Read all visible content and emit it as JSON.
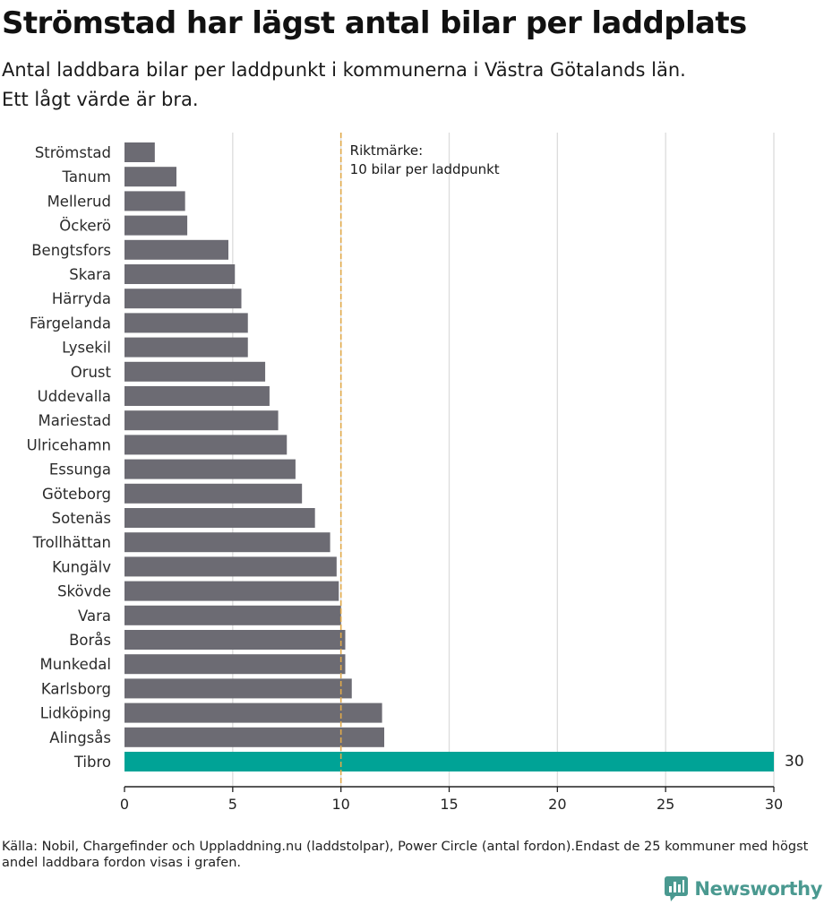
{
  "header": {
    "title": "Strömstad har lägst antal bilar per laddplats",
    "subtitle_line1": "Antal laddbara bilar per laddpunkt i kommunerna i Västra Götalands län.",
    "subtitle_line2": "Ett lågt värde är bra."
  },
  "footer": {
    "source": "Källa: Nobil, Chargefinder och Uppladdning.nu (laddstolpar), Power Circle (antal fordon).Endast de 25 kommuner med högst andel laddbara fordon visas i grafen.",
    "brand": "Newsworthy"
  },
  "colors": {
    "bar": "#6c6b73",
    "highlight": "#00a396",
    "reference_line": "#e0a94a",
    "grid": "#dcdcdc",
    "brand": "#4a9990"
  },
  "chart_data": {
    "type": "bar",
    "orientation": "horizontal",
    "categories": [
      "Strömstad",
      "Tanum",
      "Mellerud",
      "Öckerö",
      "Bengtsfors",
      "Skara",
      "Härryda",
      "Färgelanda",
      "Lysekil",
      "Orust",
      "Uddevalla",
      "Mariestad",
      "Ulricehamn",
      "Essunga",
      "Göteborg",
      "Sotenäs",
      "Trollhättan",
      "Kungälv",
      "Skövde",
      "Vara",
      "Borås",
      "Munkedal",
      "Karlsborg",
      "Lidköping",
      "Alingsås",
      "Tibro"
    ],
    "values": [
      1.4,
      2.4,
      2.8,
      2.9,
      4.8,
      5.1,
      5.4,
      5.7,
      5.7,
      6.5,
      6.7,
      7.1,
      7.5,
      7.9,
      8.2,
      8.8,
      9.5,
      9.8,
      9.9,
      10.0,
      10.2,
      10.2,
      10.5,
      11.9,
      12.0,
      30
    ],
    "highlight_category": "Tibro",
    "value_labels": [
      {
        "category": "Tibro",
        "text": "30"
      }
    ],
    "xlim": [
      0,
      30
    ],
    "xticks": [
      0,
      5,
      10,
      15,
      20,
      25,
      30
    ],
    "grid": "vertical",
    "reference_line": {
      "value": 10,
      "label_line1": "Riktmärke:",
      "label_line2": "10 bilar per laddpunkt"
    }
  }
}
